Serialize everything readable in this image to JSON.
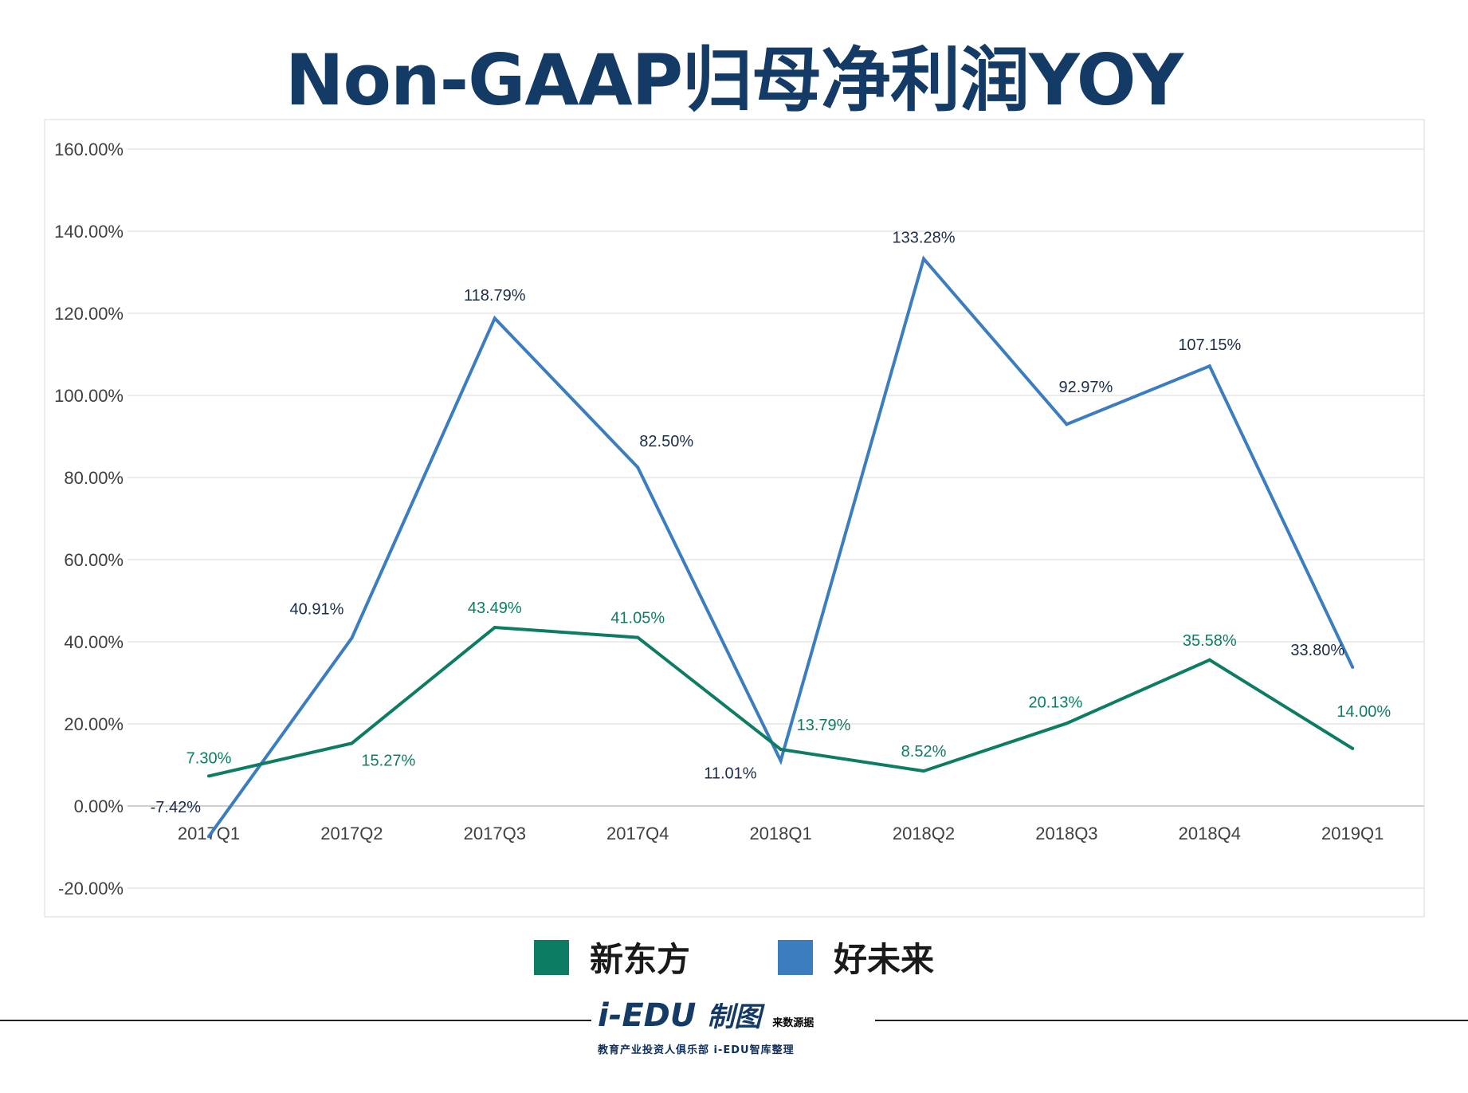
{
  "title": "Non-GAAP归母净利润YOY",
  "colors": {
    "title": "#143a66",
    "series1": "#0d7c63",
    "series2": "#3c7dbf",
    "label_series2": "#1a2e4a",
    "grid": "#d9d9d9",
    "axis": "#bfbfbf",
    "plot_border": "#d9d9d9"
  },
  "chart_data": {
    "type": "line",
    "categories": [
      "2017Q1",
      "2017Q2",
      "2017Q3",
      "2017Q4",
      "2018Q1",
      "2018Q2",
      "2018Q3",
      "2018Q4",
      "2019Q1"
    ],
    "ylim": [
      -20,
      160
    ],
    "yticks": [
      -20,
      0,
      20,
      40,
      60,
      80,
      100,
      120,
      140,
      160
    ],
    "ytick_labels": [
      "-20.00%",
      "0.00%",
      "20.00%",
      "40.00%",
      "60.00%",
      "80.00%",
      "100.00%",
      "120.00%",
      "140.00%",
      "160.00%"
    ],
    "grid": true,
    "legend_position": "bottom",
    "series": [
      {
        "name": "新东方",
        "values": [
          7.3,
          15.27,
          43.49,
          41.05,
          13.79,
          8.52,
          20.13,
          35.58,
          14.0
        ],
        "labels": [
          "7.30%",
          "15.27%",
          "43.49%",
          "41.05%",
          "13.79%",
          "8.52%",
          "20.13%",
          "35.58%",
          "14.00%"
        ]
      },
      {
        "name": "好未来",
        "values": [
          -7.42,
          40.91,
          118.79,
          82.5,
          11.01,
          133.28,
          92.97,
          107.15,
          33.8
        ],
        "labels": [
          "-7.42%",
          "40.91%",
          "118.79%",
          "82.50%",
          "11.01%",
          "133.28%",
          "92.97%",
          "107.15%",
          "33.80%"
        ]
      }
    ]
  },
  "legend": {
    "items": [
      "新东方",
      "好未来"
    ]
  },
  "footer": {
    "logo_text": "i-EDU",
    "logo_badge": "制图",
    "logo_badge_small": "来数源据",
    "tagline": "教育产业投资人俱乐部  i-EDU智库整理"
  }
}
